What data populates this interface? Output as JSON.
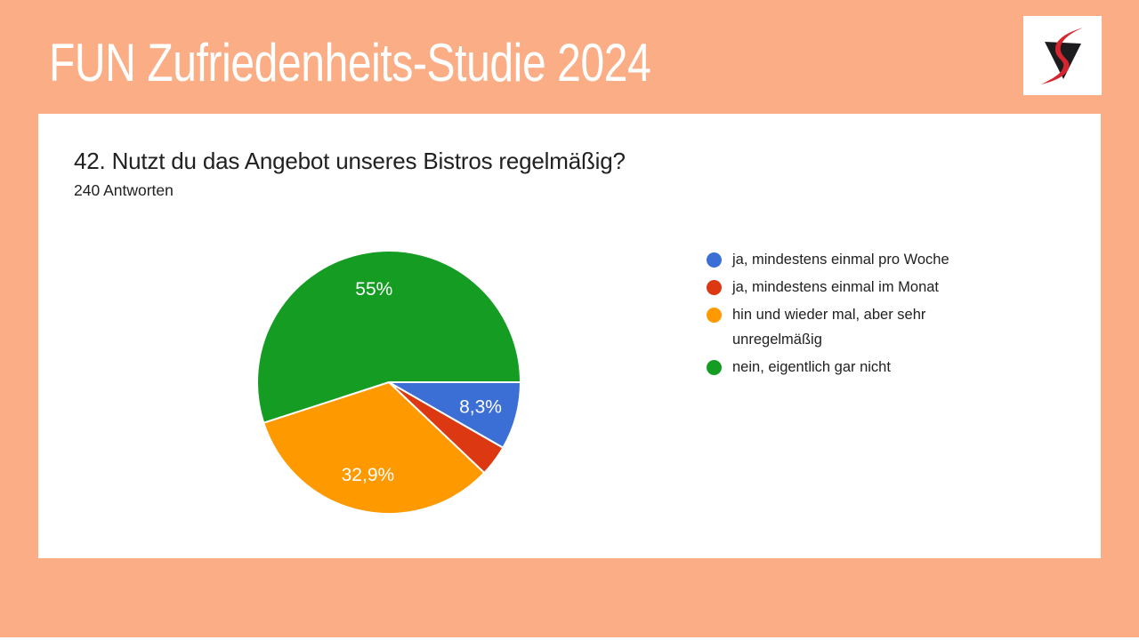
{
  "header": {
    "title": "FUN Zufriedenheits-Studie 2024"
  },
  "question": {
    "title": "42. Nutzt du das Angebot unseres Bistros regelmäßig?",
    "answers_count": "240 Antworten"
  },
  "chart_data": {
    "type": "pie",
    "title": "42. Nutzt du das Angebot unseres Bistros regelmäßig?",
    "subtitle": "240 Antworten",
    "total_responses": 240,
    "unit": "percent",
    "start_angle_deg": 0,
    "direction": "clockwise",
    "legend_position": "right",
    "slices": [
      {
        "label": "ja, mindestens einmal pro Woche",
        "value": 8.3,
        "display_label": "8,3%",
        "color": "#3C6FD6"
      },
      {
        "label": "ja, mindestens einmal im Monat",
        "value": 3.8,
        "display_label": "",
        "color": "#DC3912"
      },
      {
        "label": "hin und wieder mal, aber sehr unregelmäßig",
        "value": 32.9,
        "display_label": "32,9%",
        "color": "#FF9900"
      },
      {
        "label": "nein, eigentlich gar nicht",
        "value": 55.0,
        "display_label": "55%",
        "color": "#149C23"
      }
    ]
  },
  "colors": {
    "background": "#FBAE85",
    "card_background": "#FFFFFF",
    "title_text": "#FFFFFF",
    "body_text": "#212121",
    "pie_separator": "#FFFFFF",
    "logo_red": "#D6252E",
    "logo_black": "#1C1C1E"
  }
}
